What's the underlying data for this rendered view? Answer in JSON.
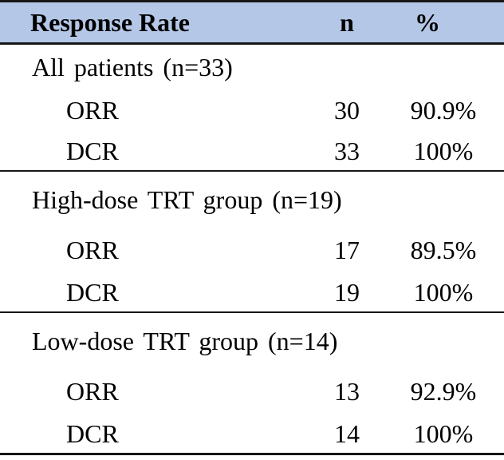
{
  "chart_data": {
    "type": "table",
    "title": "Response Rate",
    "columns": [
      "Response Rate",
      "n",
      "%"
    ],
    "sections": [
      {
        "group": "All patients (n=33)",
        "rows": [
          {
            "label": "ORR",
            "n": "30",
            "pct": "90.9%"
          },
          {
            "label": "DCR",
            "n": "33",
            "pct": "100%"
          }
        ]
      },
      {
        "group": "High-dose TRT group (n=19)",
        "rows": [
          {
            "label": "ORR",
            "n": "17",
            "pct": "89.5%"
          },
          {
            "label": "DCR",
            "n": "19",
            "pct": "100%"
          }
        ]
      },
      {
        "group": "Low-dose TRT group (n=14)",
        "rows": [
          {
            "label": "ORR",
            "n": "13",
            "pct": "92.9%"
          },
          {
            "label": "DCR",
            "n": "14",
            "pct": "100%"
          }
        ]
      }
    ],
    "layout": {
      "header_fill": true,
      "grid": "horizontal-rules-only"
    }
  },
  "colors": {
    "header_bg": "#b4c7e7",
    "border": "#161616",
    "text": "#000000"
  }
}
